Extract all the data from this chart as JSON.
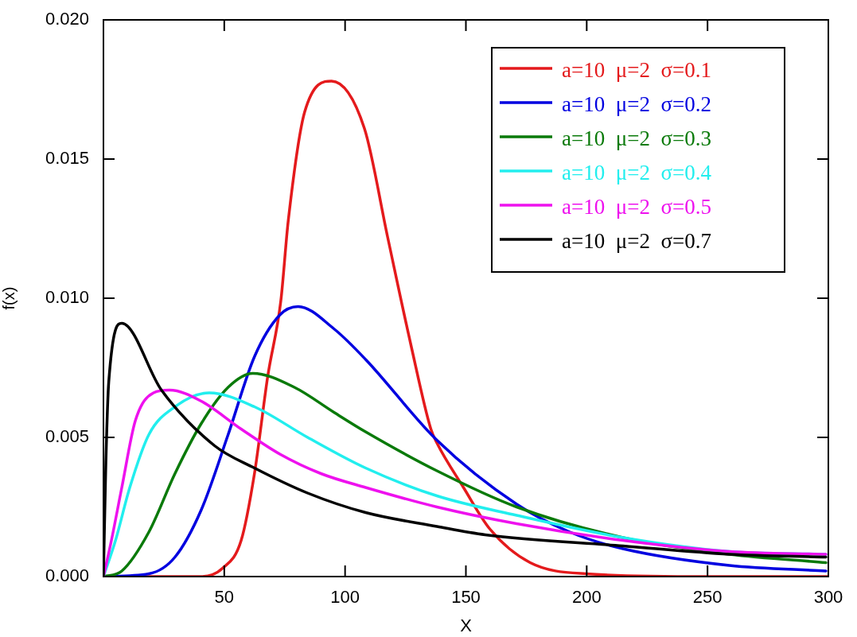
{
  "chart_data": {
    "type": "line",
    "xlabel": "X",
    "ylabel": "f(x)",
    "xlim": [
      0,
      300
    ],
    "ylim": [
      0,
      0.02
    ],
    "xticks": [
      50,
      100,
      150,
      200,
      250,
      300
    ],
    "yticks": [
      "0.000",
      0.005,
      "0.010",
      0.015,
      "0.020"
    ],
    "grid": false,
    "legend": "top right",
    "marker": "none",
    "line_style": "solid",
    "series": [
      {
        "name": "a=10  μ=2  σ=0.1",
        "color": "#e41a1c",
        "x": [
          0,
          40.5,
          49.3,
          57,
          62.5,
          68,
          73.4,
          76.5,
          83.3,
          94.4,
          108,
          117.6,
          127.3,
          135.5,
          138,
          149,
          160,
          176.6,
          199.7,
          250,
          300
        ],
        "values": [
          0,
          0,
          0.0003,
          0.0013,
          0.0037,
          0.0072,
          0.0099,
          0.0128,
          0.0167,
          0.0178,
          0.0161,
          0.0122,
          0.0083,
          0.0053,
          0.0048,
          0.0032,
          0.0017,
          0.0005,
          0.0001,
          0,
          0
        ]
      },
      {
        "name": "a=10  μ=2  σ=0.2",
        "color": "#0000e0",
        "x": [
          0,
          18.8,
          29.6,
          40.5,
          51.6,
          62.5,
          73,
          80.6,
          95.4,
          108.5,
          138,
          171,
          193,
          215,
          259,
          299
        ],
        "values": [
          0,
          0.0001,
          0.0007,
          0.0024,
          0.0051,
          0.0079,
          0.0094,
          0.0097,
          0.0089,
          0.0078,
          0.0049,
          0.0026,
          0.0016,
          0.001,
          0.0004,
          0.0002
        ]
      },
      {
        "name": "a=10  μ=2  σ=0.3",
        "color": "#0a7a0a",
        "x": [
          0,
          7.6,
          18.8,
          29.6,
          40.5,
          51.6,
          61.8,
          79,
          95.4,
          108.5,
          138,
          171,
          215,
          259,
          299
        ],
        "values": [
          0,
          0.0002,
          0.0016,
          0.0037,
          0.0055,
          0.0068,
          0.0073,
          0.0068,
          0.0059,
          0.0052,
          0.0038,
          0.0025,
          0.0014,
          0.0008,
          0.0005
        ]
      },
      {
        "name": "a=10  μ=2  σ=0.4",
        "color": "#22eeee",
        "x": [
          0,
          5,
          10.9,
          18.8,
          29.6,
          43.8,
          62.5,
          84.5,
          108.5,
          138,
          171,
          215,
          259,
          299
        ],
        "values": [
          0,
          0.0013,
          0.0032,
          0.0051,
          0.0061,
          0.0066,
          0.0061,
          0.005,
          0.0039,
          0.0029,
          0.0022,
          0.0014,
          0.0009,
          0.0008
        ]
      },
      {
        "name": "a=10  μ=2  σ=0.5",
        "color": "#ee11ee",
        "x": [
          0,
          3.3,
          7.6,
          13.2,
          20.7,
          27.3,
          40.5,
          57,
          73,
          90,
          108.5,
          138,
          171,
          215,
          259,
          299
        ],
        "values": [
          0,
          0.0013,
          0.0032,
          0.0056,
          0.0066,
          0.0067,
          0.0063,
          0.0053,
          0.0044,
          0.0037,
          0.0032,
          0.0025,
          0.0019,
          0.0013,
          0.0009,
          0.0008
        ]
      },
      {
        "name": "a=10  μ=2  σ=0.7",
        "color": "#000000",
        "x": [
          0,
          1,
          2.2,
          7.6,
          24,
          46,
          62.5,
          84.5,
          108.5,
          138,
          158,
          215,
          259,
          299
        ],
        "values": [
          0,
          0.0041,
          0.007,
          0.0091,
          0.0067,
          0.0047,
          0.0039,
          0.003,
          0.0023,
          0.0018,
          0.0015,
          0.0011,
          0.0008,
          0.0007
        ]
      }
    ]
  }
}
